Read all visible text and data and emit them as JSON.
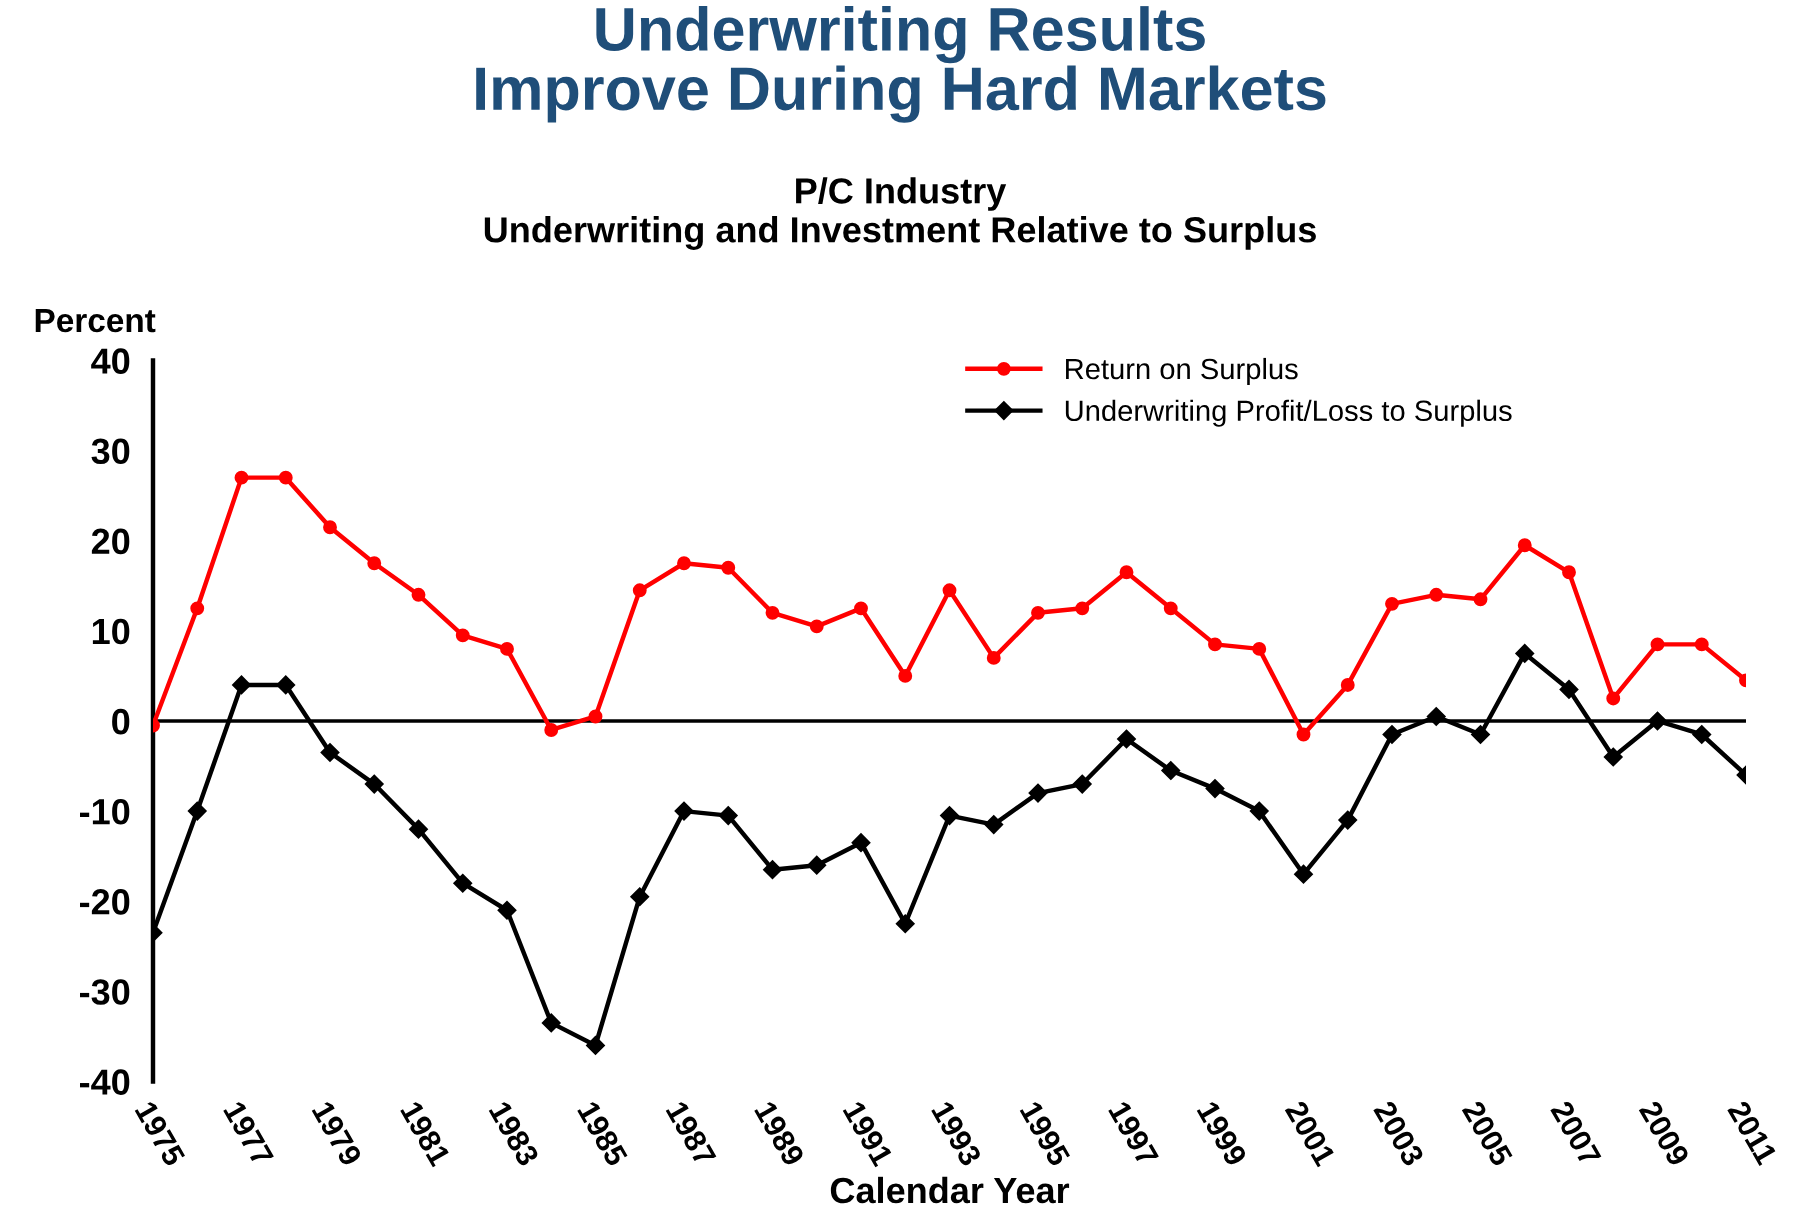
{
  "chart_data": {
    "type": "line",
    "title": "Underwriting Results\nImprove During Hard Markets",
    "subtitle": "P/C Industry\nUnderwriting and Investment Relative to Surplus",
    "xlabel": "Calendar Year",
    "ylabel": "Percent",
    "x": [
      1975,
      1976,
      1977,
      1978,
      1979,
      1980,
      1981,
      1982,
      1983,
      1984,
      1985,
      1986,
      1987,
      1988,
      1989,
      1990,
      1991,
      1992,
      1993,
      1994,
      1995,
      1996,
      1997,
      1998,
      1999,
      2000,
      2001,
      2002,
      2003,
      2004,
      2005,
      2006,
      2007,
      2008,
      2009,
      2010,
      2011
    ],
    "series": [
      {
        "name": "Return on Surplus",
        "color": "#ff0000",
        "marker": "circle",
        "values": [
          -0.5,
          12.5,
          27,
          27,
          21.5,
          17.5,
          14,
          9.5,
          8,
          -1,
          0.5,
          14.5,
          17.5,
          17,
          12,
          10.5,
          12.5,
          5,
          14.5,
          7,
          12,
          12.5,
          16.5,
          12.5,
          8.5,
          8,
          -1.5,
          4,
          13,
          14,
          13.5,
          19.5,
          16.5,
          2.5,
          8.5,
          8.5,
          4.5
        ]
      },
      {
        "name": "Underwriting Profit/Loss to Surplus",
        "color": "#000000",
        "marker": "diamond",
        "values": [
          -23.5,
          -10,
          4,
          4,
          -3.5,
          -7,
          -12,
          -18,
          -21,
          -33.5,
          -36,
          -19.5,
          -10,
          -10.5,
          -16.5,
          -16,
          -13.5,
          -22.5,
          -10.5,
          -11.5,
          -8,
          -7,
          -2,
          -5.5,
          -7.5,
          -10,
          -17,
          -11,
          -1.5,
          0.5,
          -1.5,
          7.5,
          3.5,
          -4,
          0,
          -1.5,
          -6
        ]
      }
    ],
    "xlim": [
      1975,
      2011
    ],
    "xticks": [
      1975,
      1977,
      1979,
      1981,
      1983,
      1985,
      1987,
      1989,
      1991,
      1993,
      1995,
      1997,
      1999,
      2001,
      2003,
      2005,
      2007,
      2009,
      2011
    ],
    "ylim": [
      -40,
      40
    ],
    "yticks": [
      -40,
      -30,
      -20,
      -10,
      0,
      10,
      20,
      30,
      40
    ],
    "ref_lines": [
      {
        "axis": "y",
        "value": 0,
        "color": "#000000"
      }
    ],
    "grid": false,
    "legend": "top right",
    "line_style": "solid"
  }
}
